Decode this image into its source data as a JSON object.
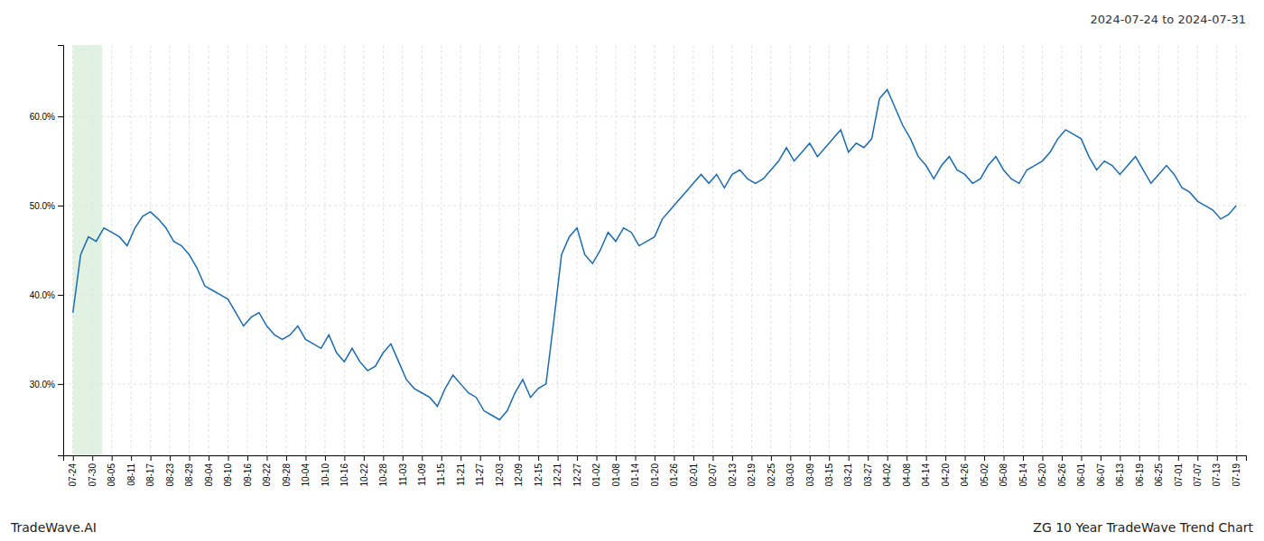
{
  "chart_data": {
    "type": "line",
    "title": "2024-07-24 to 2024-07-31",
    "annotations": [
      "TradeWave.AI",
      "ZG 10 Year TradeWave Trend Chart"
    ],
    "color": "#1a6bb5",
    "grid": true,
    "highlight": {
      "x": [
        0,
        1.5
      ],
      "color": "#d6ecd6"
    },
    "xlim": [
      -0.5,
      60.5
    ],
    "xticks": [
      {
        "value": 0,
        "label": "07-24"
      },
      {
        "value": 1,
        "label": "07-30"
      },
      {
        "value": 2,
        "label": "08-05"
      },
      {
        "value": 3,
        "label": "08-11"
      },
      {
        "value": 4,
        "label": "08-17"
      },
      {
        "value": 5,
        "label": "08-23"
      },
      {
        "value": 6,
        "label": "08-29"
      },
      {
        "value": 7,
        "label": "09-04"
      },
      {
        "value": 8,
        "label": "09-10"
      },
      {
        "value": 9,
        "label": "09-16"
      },
      {
        "value": 10,
        "label": "09-22"
      },
      {
        "value": 11,
        "label": "09-28"
      },
      {
        "value": 12,
        "label": "10-04"
      },
      {
        "value": 13,
        "label": "10-10"
      },
      {
        "value": 14,
        "label": "10-16"
      },
      {
        "value": 15,
        "label": "10-22"
      },
      {
        "value": 16,
        "label": "10-28"
      },
      {
        "value": 17,
        "label": "11-03"
      },
      {
        "value": 18,
        "label": "11-09"
      },
      {
        "value": 19,
        "label": "11-15"
      },
      {
        "value": 20,
        "label": "11-21"
      },
      {
        "value": 21,
        "label": "11-27"
      },
      {
        "value": 22,
        "label": "12-03"
      },
      {
        "value": 23,
        "label": "12-09"
      },
      {
        "value": 24,
        "label": "12-15"
      },
      {
        "value": 25,
        "label": "12-21"
      },
      {
        "value": 26,
        "label": "12-27"
      },
      {
        "value": 27,
        "label": "01-02"
      },
      {
        "value": 28,
        "label": "01-08"
      },
      {
        "value": 29,
        "label": "01-14"
      },
      {
        "value": 30,
        "label": "01-20"
      },
      {
        "value": 31,
        "label": "01-26"
      },
      {
        "value": 32,
        "label": "02-01"
      },
      {
        "value": 33,
        "label": "02-07"
      },
      {
        "value": 34,
        "label": "02-13"
      },
      {
        "value": 35,
        "label": "02-19"
      },
      {
        "value": 36,
        "label": "02-25"
      },
      {
        "value": 37,
        "label": "03-03"
      },
      {
        "value": 38,
        "label": "03-09"
      },
      {
        "value": 39,
        "label": "03-15"
      },
      {
        "value": 40,
        "label": "03-21"
      },
      {
        "value": 41,
        "label": "03-27"
      },
      {
        "value": 42,
        "label": "04-02"
      },
      {
        "value": 43,
        "label": "04-08"
      },
      {
        "value": 44,
        "label": "04-14"
      },
      {
        "value": 45,
        "label": "04-20"
      },
      {
        "value": 46,
        "label": "04-26"
      },
      {
        "value": 47,
        "label": "05-02"
      },
      {
        "value": 48,
        "label": "05-08"
      },
      {
        "value": 49,
        "label": "05-14"
      },
      {
        "value": 50,
        "label": "05-20"
      },
      {
        "value": 51,
        "label": "05-26"
      },
      {
        "value": 52,
        "label": "06-01"
      },
      {
        "value": 53,
        "label": "06-07"
      },
      {
        "value": 54,
        "label": "06-13"
      },
      {
        "value": 55,
        "label": "06-19"
      },
      {
        "value": 56,
        "label": "06-25"
      },
      {
        "value": 57,
        "label": "07-01"
      },
      {
        "value": 58,
        "label": "07-07"
      },
      {
        "value": 59,
        "label": "07-13"
      },
      {
        "value": 60,
        "label": "07-19"
      }
    ],
    "ylim": [
      22,
      68
    ],
    "yticks": [
      {
        "value": 30,
        "label": "30.0%"
      },
      {
        "value": 40,
        "label": "40.0%"
      },
      {
        "value": 50,
        "label": "50.0%"
      },
      {
        "value": 60,
        "label": "60.0%"
      }
    ],
    "x": [
      0,
      0.4,
      0.8,
      1.2,
      1.6,
      2,
      2.4,
      2.8,
      3.2,
      3.6,
      4,
      4.4,
      4.8,
      5.2,
      5.6,
      6,
      6.4,
      6.8,
      7.2,
      7.6,
      8,
      8.4,
      8.8,
      9.2,
      9.6,
      10,
      10.4,
      10.8,
      11.2,
      11.6,
      12,
      12.4,
      12.8,
      13.2,
      13.6,
      14,
      14.4,
      14.8,
      15.2,
      15.6,
      16,
      16.4,
      16.8,
      17.2,
      17.6,
      18,
      18.4,
      18.8,
      19.2,
      19.6,
      20,
      20.4,
      20.8,
      21.2,
      21.6,
      22,
      22.4,
      22.8,
      23.2,
      23.6,
      24,
      24.4,
      24.8,
      25.2,
      25.6,
      26,
      26.4,
      26.8,
      27.2,
      27.6,
      28,
      28.4,
      28.8,
      29.2,
      29.6,
      30,
      30.4,
      30.8,
      31.2,
      31.6,
      32,
      32.4,
      32.8,
      33.2,
      33.6,
      34,
      34.4,
      34.8,
      35.2,
      35.6,
      36,
      36.4,
      36.8,
      37.2,
      37.6,
      38,
      38.4,
      38.8,
      39.2,
      39.6,
      40,
      40.4,
      40.8,
      41.2,
      41.6,
      42,
      42.4,
      42.8,
      43.2,
      43.6,
      44,
      44.4,
      44.8,
      45.2,
      45.6,
      46,
      46.4,
      46.8,
      47.2,
      47.6,
      48,
      48.4,
      48.8,
      49.2,
      49.6,
      50,
      50.4,
      50.8,
      51.2,
      51.6,
      52,
      52.4,
      52.8,
      53.2,
      53.6,
      54,
      54.4,
      54.8,
      55.2,
      55.6,
      56,
      56.4,
      56.8,
      57.2,
      57.6,
      58,
      58.4,
      58.8,
      59.2,
      59.6,
      60
    ],
    "values": [
      38.0,
      44.5,
      46.5,
      46.0,
      47.5,
      47.0,
      46.5,
      45.5,
      47.5,
      48.8,
      49.3,
      48.5,
      47.5,
      46.0,
      45.5,
      44.5,
      43.0,
      41.0,
      40.5,
      40.0,
      39.5,
      38.0,
      36.5,
      37.5,
      38.0,
      36.5,
      35.5,
      35.0,
      35.5,
      36.5,
      35.0,
      34.5,
      34.0,
      35.5,
      33.5,
      32.5,
      34.0,
      32.5,
      31.5,
      32.0,
      33.5,
      34.5,
      32.5,
      30.5,
      29.5,
      29.0,
      28.5,
      27.5,
      29.5,
      31.0,
      30.0,
      29.0,
      28.5,
      27.0,
      26.5,
      26.0,
      27.0,
      29.0,
      30.5,
      28.5,
      29.5,
      30.0,
      37.0,
      44.5,
      46.5,
      47.5,
      44.5,
      43.5,
      45.0,
      47.0,
      46.0,
      47.5,
      47.0,
      45.5,
      46.0,
      46.5,
      48.5,
      49.5,
      50.5,
      51.5,
      52.5,
      53.5,
      52.5,
      53.5,
      52.0,
      53.5,
      54.0,
      53.0,
      52.5,
      53.0,
      54.0,
      55.0,
      56.5,
      55.0,
      56.0,
      57.0,
      55.5,
      56.5,
      57.5,
      58.5,
      56.0,
      57.0,
      56.5,
      57.5,
      62.0,
      63.0,
      61.0,
      59.0,
      57.5,
      55.5,
      54.5,
      53.0,
      54.5,
      55.5,
      54.0,
      53.5,
      52.5,
      53.0,
      54.5,
      55.5,
      54.0,
      53.0,
      52.5,
      54.0,
      54.5,
      55.0,
      56.0,
      57.5,
      58.5,
      58.0,
      57.5,
      55.5,
      54.0,
      55.0,
      54.5,
      53.5,
      54.5,
      55.5,
      54.0,
      52.5,
      53.5,
      54.5,
      53.5,
      52.0,
      51.5,
      50.5,
      50.0,
      49.5,
      48.5,
      49.0,
      50.0
    ]
  }
}
